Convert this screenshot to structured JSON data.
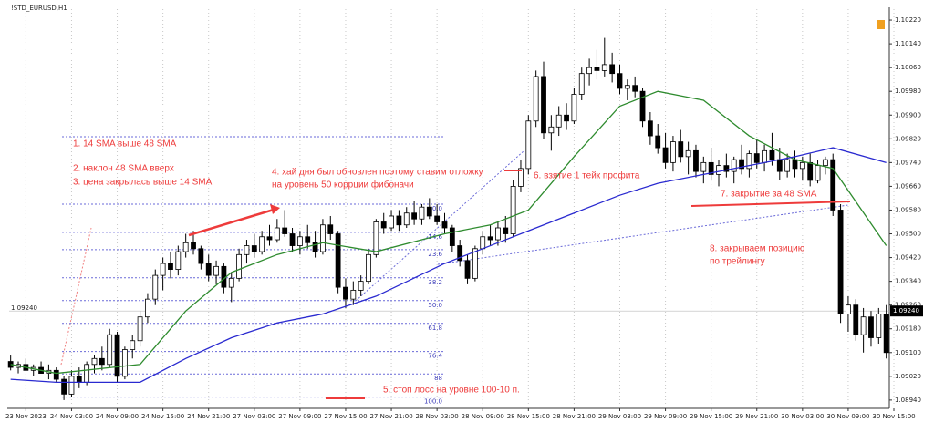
{
  "chart_data": {
    "type": "candlestick",
    "title": "!STD_EURUSD,H1",
    "xlim": [
      -0.2,
      115.4
    ],
    "ylim": [
      1.08912,
      1.10257
    ],
    "xticks": [
      {
        "value": 2,
        "label": "23 Nov 2023"
      },
      {
        "value": 8,
        "label": "24 Nov 03:00"
      },
      {
        "value": 14,
        "label": "24 Nov 09:00"
      },
      {
        "value": 20,
        "label": "24 Nov 15:00"
      },
      {
        "value": 26,
        "label": "24 Nov 21:00"
      },
      {
        "value": 32,
        "label": "27 Nov 03:00"
      },
      {
        "value": 38,
        "label": "27 Nov 09:00"
      },
      {
        "value": 44,
        "label": "27 Nov 15:00"
      },
      {
        "value": 50,
        "label": "27 Nov 21:00"
      },
      {
        "value": 56,
        "label": "28 Nov 03:00"
      },
      {
        "value": 62,
        "label": "28 Nov 09:00"
      },
      {
        "value": 68,
        "label": "28 Nov 15:00"
      },
      {
        "value": 74,
        "label": "28 Nov 21:00"
      },
      {
        "value": 80,
        "label": "29 Nov 03:00"
      },
      {
        "value": 86,
        "label": "29 Nov 09:00"
      },
      {
        "value": 92,
        "label": "29 Nov 15:00"
      },
      {
        "value": 98,
        "label": "29 Nov 21:00"
      },
      {
        "value": 104,
        "label": "30 Nov 03:00"
      },
      {
        "value": 110,
        "label": "30 Nov 09:00"
      },
      {
        "value": 116,
        "label": "30 Nov 15:00"
      }
    ],
    "yticks": [
      {
        "value": 1.1022,
        "label": "1.10220"
      },
      {
        "value": 1.1014,
        "label": "1.10140"
      },
      {
        "value": 1.1006,
        "label": "1.10060"
      },
      {
        "value": 1.0998,
        "label": "1.09980"
      },
      {
        "value": 1.099,
        "label": "1.09900"
      },
      {
        "value": 1.0982,
        "label": "1.09820"
      },
      {
        "value": 1.0974,
        "label": "1.09740"
      },
      {
        "value": 1.0966,
        "label": "1.09660"
      },
      {
        "value": 1.0958,
        "label": "1.09580"
      },
      {
        "value": 1.095,
        "label": "1.09500"
      },
      {
        "value": 1.0942,
        "label": "1.09420"
      },
      {
        "value": 1.0934,
        "label": "1.09340"
      },
      {
        "value": 1.0926,
        "label": "1.09260"
      },
      {
        "value": 1.0918,
        "label": "1.09180"
      },
      {
        "value": 1.091,
        "label": "1.09100"
      },
      {
        "value": 1.0902,
        "label": "1.09020"
      },
      {
        "value": 1.0894,
        "label": "1.08940"
      }
    ],
    "grid": true,
    "price_line": {
      "value": 1.0924,
      "label": "1.09240"
    },
    "ohlc": [
      [
        1.0907,
        1.0909,
        1.0904,
        1.0905
      ],
      [
        1.0905,
        1.0907,
        1.0903,
        1.0906
      ],
      [
        1.0906,
        1.0908,
        1.0904,
        1.0904
      ],
      [
        1.0904,
        1.0906,
        1.0902,
        1.0905
      ],
      [
        1.0905,
        1.0907,
        1.0903,
        1.0903
      ],
      [
        1.0903,
        1.0906,
        1.0901,
        1.0904
      ],
      [
        1.0904,
        1.0905,
        1.09,
        1.0901
      ],
      [
        1.0901,
        1.0902,
        1.0894,
        1.0896
      ],
      [
        1.0896,
        1.0904,
        1.0895,
        1.0902
      ],
      [
        1.0902,
        1.0905,
        1.0898,
        1.09
      ],
      [
        1.09,
        1.0907,
        1.0899,
        1.0906
      ],
      [
        1.0906,
        1.0909,
        1.0903,
        1.0908
      ],
      [
        1.0908,
        1.0912,
        1.0904,
        1.0906
      ],
      [
        1.0906,
        1.0918,
        1.0905,
        1.0916
      ],
      [
        1.0916,
        1.0917,
        1.09,
        1.0902
      ],
      [
        1.0902,
        1.0912,
        1.0901,
        1.0911
      ],
      [
        1.0911,
        1.0916,
        1.0908,
        1.0914
      ],
      [
        1.0914,
        1.0924,
        1.0912,
        1.0922
      ],
      [
        1.0922,
        1.093,
        1.092,
        1.0928
      ],
      [
        1.0928,
        1.0938,
        1.0926,
        1.0936
      ],
      [
        1.0936,
        1.0942,
        1.0931,
        1.094
      ],
      [
        1.094,
        1.0944,
        1.0935,
        1.0938
      ],
      [
        1.0938,
        1.0946,
        1.0936,
        1.0944
      ],
      [
        1.0944,
        1.095,
        1.0942,
        1.0947
      ],
      [
        1.0947,
        1.0951,
        1.0943,
        1.0945
      ],
      [
        1.0945,
        1.0946,
        1.0938,
        1.094
      ],
      [
        1.094,
        1.0943,
        1.0934,
        1.0936
      ],
      [
        1.0936,
        1.0941,
        1.0933,
        1.0939
      ],
      [
        1.0939,
        1.094,
        1.093,
        1.0932
      ],
      [
        1.0932,
        1.0937,
        1.0927,
        1.0935
      ],
      [
        1.0935,
        1.0945,
        1.0934,
        1.0943
      ],
      [
        1.0943,
        1.0948,
        1.094,
        1.0946
      ],
      [
        1.0946,
        1.095,
        1.0942,
        1.0944
      ],
      [
        1.0944,
        1.0951,
        1.0943,
        1.0949
      ],
      [
        1.0949,
        1.0953,
        1.0946,
        1.0948
      ],
      [
        1.0948,
        1.0955,
        1.0947,
        1.0952
      ],
      [
        1.0952,
        1.0958,
        1.0949,
        1.095
      ],
      [
        1.095,
        1.0952,
        1.0944,
        1.0946
      ],
      [
        1.0946,
        1.0951,
        1.0943,
        1.0949
      ],
      [
        1.0949,
        1.0953,
        1.0945,
        1.0947
      ],
      [
        1.0947,
        1.0951,
        1.0942,
        1.0944
      ],
      [
        1.0944,
        1.0955,
        1.0943,
        1.0953
      ],
      [
        1.0953,
        1.0956,
        1.0948,
        1.095
      ],
      [
        1.095,
        1.0951,
        1.093,
        1.0932
      ],
      [
        1.0932,
        1.0935,
        1.0925,
        1.0928
      ],
      [
        1.0928,
        1.0934,
        1.0926,
        1.0931
      ],
      [
        1.0931,
        1.0936,
        1.0929,
        1.0934
      ],
      [
        1.0934,
        1.0945,
        1.0933,
        1.0943
      ],
      [
        1.0943,
        1.0955,
        1.0942,
        1.0954
      ],
      [
        1.0954,
        1.0957,
        1.095,
        1.0952
      ],
      [
        1.0952,
        1.0958,
        1.0951,
        1.0956
      ],
      [
        1.0956,
        1.0958,
        1.0951,
        1.0953
      ],
      [
        1.0953,
        1.0959,
        1.0952,
        1.0957
      ],
      [
        1.0957,
        1.0961,
        1.0953,
        1.0955
      ],
      [
        1.0955,
        1.096,
        1.0953,
        1.0959
      ],
      [
        1.0959,
        1.0962,
        1.0955,
        1.0956
      ],
      [
        1.0956,
        1.096,
        1.0953,
        1.0954
      ],
      [
        1.0954,
        1.0957,
        1.095,
        1.0952
      ],
      [
        1.0952,
        1.0953,
        1.0944,
        1.0946
      ],
      [
        1.0946,
        1.0948,
        1.0939,
        1.0941
      ],
      [
        1.0941,
        1.0943,
        1.0933,
        1.0935
      ],
      [
        1.0935,
        1.0946,
        1.0934,
        1.0945
      ],
      [
        1.0945,
        1.0951,
        1.0943,
        1.0949
      ],
      [
        1.0949,
        1.0953,
        1.0946,
        1.0948
      ],
      [
        1.0948,
        1.0954,
        1.0946,
        1.0952
      ],
      [
        1.0952,
        1.0956,
        1.0947,
        1.095
      ],
      [
        1.095,
        1.0968,
        1.0949,
        1.0966
      ],
      [
        1.0966,
        1.0975,
        1.0964,
        1.0972
      ],
      [
        1.0972,
        1.099,
        1.097,
        1.0988
      ],
      [
        1.0988,
        1.1005,
        1.0986,
        1.1003
      ],
      [
        1.1003,
        1.1008,
        1.0982,
        1.0984
      ],
      [
        1.0984,
        1.099,
        1.0978,
        1.0986
      ],
      [
        1.0986,
        1.0993,
        1.0983,
        1.099
      ],
      [
        1.099,
        1.0994,
        1.0985,
        1.0988
      ],
      [
        1.0988,
        1.0999,
        1.0987,
        1.0997
      ],
      [
        1.0997,
        1.1006,
        1.0995,
        1.1004
      ],
      [
        1.1004,
        1.1009,
        1.1,
        1.1006
      ],
      [
        1.1006,
        1.1012,
        1.1002,
        1.1005
      ],
      [
        1.1005,
        1.1016,
        1.1003,
        1.1007
      ],
      [
        1.1007,
        1.1011,
        1.1001,
        1.1004
      ],
      [
        1.1004,
        1.1007,
        1.0997,
        1.0999
      ],
      [
        1.0999,
        1.1002,
        1.0995,
        1.1
      ],
      [
        1.1,
        1.1003,
        1.0996,
        1.0998
      ],
      [
        1.0998,
        1.0999,
        1.0986,
        1.0988
      ],
      [
        1.0988,
        1.0991,
        1.098,
        1.0983
      ],
      [
        1.0983,
        1.0987,
        1.0977,
        1.0979
      ],
      [
        1.0979,
        1.0984,
        1.0972,
        1.0974
      ],
      [
        1.0974,
        1.0983,
        1.0971,
        1.0981
      ],
      [
        1.0981,
        1.0985,
        1.0974,
        1.0976
      ],
      [
        1.0976,
        1.0981,
        1.097,
        1.0978
      ],
      [
        1.0978,
        1.098,
        1.0969,
        1.0971
      ],
      [
        1.0971,
        1.0976,
        1.0967,
        1.0974
      ],
      [
        1.0974,
        1.0979,
        1.0968,
        1.097
      ],
      [
        1.097,
        1.0975,
        1.0966,
        1.0973
      ],
      [
        1.0973,
        1.0977,
        1.0969,
        1.0971
      ],
      [
        1.0971,
        1.0976,
        1.0967,
        1.0975
      ],
      [
        1.0975,
        1.098,
        1.097,
        1.0972
      ],
      [
        1.0972,
        1.0978,
        1.0969,
        1.0977
      ],
      [
        1.0977,
        1.0982,
        1.0972,
        1.0974
      ],
      [
        1.0974,
        1.098,
        1.0971,
        1.0978
      ],
      [
        1.0978,
        1.0984,
        1.0973,
        1.0975
      ],
      [
        1.0975,
        1.0979,
        1.0968,
        1.0971
      ],
      [
        1.0971,
        1.0977,
        1.0969,
        1.0975
      ],
      [
        1.0975,
        1.0978,
        1.0969,
        1.0972
      ],
      [
        1.0972,
        1.0976,
        1.0968,
        1.0974
      ],
      [
        1.0974,
        1.0977,
        1.0966,
        1.0968
      ],
      [
        1.0968,
        1.0975,
        1.0967,
        1.0973
      ],
      [
        1.0973,
        1.0976,
        1.097,
        1.0975
      ],
      [
        1.0975,
        1.0977,
        1.0956,
        1.0958
      ],
      [
        1.0958,
        1.096,
        1.092,
        1.0923
      ],
      [
        1.0923,
        1.0929,
        1.0917,
        1.0926
      ],
      [
        1.0926,
        1.0928,
        1.0914,
        1.0916
      ],
      [
        1.0916,
        1.0925,
        1.091,
        1.0922
      ],
      [
        1.0922,
        1.0924,
        1.0912,
        1.0915
      ],
      [
        1.0915,
        1.0925,
        1.0913,
        1.0923
      ],
      [
        1.0923,
        1.0926,
        1.0908,
        1.091
      ]
    ],
    "lines": [
      {
        "color": "#2e8b2e",
        "x": [
          0,
          6,
          17,
          23,
          29,
          35,
          41,
          48,
          57,
          63,
          68,
          74,
          80,
          85,
          91,
          97,
          103,
          108,
          115
        ],
        "values": [
          1.0906,
          1.0903,
          1.0906,
          1.0924,
          1.0937,
          1.0943,
          1.0947,
          1.0944,
          1.095,
          1.0953,
          1.0958,
          1.0976,
          1.0993,
          1.0998,
          1.0995,
          1.0983,
          1.0975,
          1.0972,
          1.0946
        ]
      },
      {
        "color": "#2a2ad0",
        "x": [
          0,
          6,
          17,
          23,
          29,
          35,
          41,
          48,
          57,
          63,
          68,
          74,
          80,
          85,
          91,
          97,
          103,
          108,
          115
        ],
        "values": [
          1.0901,
          1.09,
          1.09,
          1.0908,
          1.0915,
          1.092,
          1.0923,
          1.0929,
          1.094,
          1.0946,
          1.0951,
          1.0957,
          1.0963,
          1.0967,
          1.097,
          1.0973,
          1.0976,
          1.0979,
          1.0974
        ]
      }
    ],
    "fibonacci": {
      "start": 1.096,
      "end": 1.0895,
      "levels": [
        {
          "value": 0,
          "label": "0.0"
        },
        14.6,
        23.6,
        38.2,
        {
          "value": 50,
          "label": "50.0"
        },
        61.8,
        76.4,
        88,
        {
          "value": 100,
          "label": "100.0"
        }
      ]
    },
    "annotations": [
      "1. 14 SMA  выше 48 SMA",
      "2. наклон 48 SMA  вверх",
      "3.  цена закрылась  выше 14 SMA",
      "4. хай дня был обновлен поэтому ставим отложку",
      "на уровень 50 коррции фибоначи",
      "5. стоп лосс на уровне 100-10 п.",
      "6. взятие 1 тейк профита",
      "7. закрытие за 48 SMA",
      "8. закрываем позицию",
      "по трейлингу"
    ]
  }
}
